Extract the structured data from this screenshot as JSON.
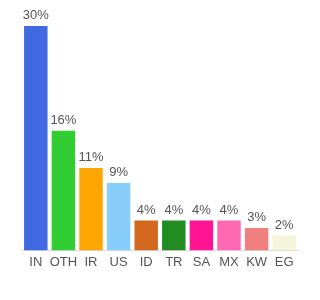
{
  "chart_data": {
    "type": "bar",
    "categories": [
      "IN",
      "OTH",
      "IR",
      "US",
      "ID",
      "TR",
      "SA",
      "MX",
      "KW",
      "EG"
    ],
    "values": [
      30,
      16,
      11,
      9,
      4,
      4,
      4,
      4,
      3,
      2
    ],
    "value_labels": [
      "30%",
      "16%",
      "11%",
      "9%",
      "4%",
      "4%",
      "4%",
      "4%",
      "3%",
      "2%"
    ],
    "colors": [
      "#4169e1",
      "#32cd32",
      "#ffa500",
      "#87cefa",
      "#d2691e",
      "#228b22",
      "#ff1493",
      "#ff69b4",
      "#f08080",
      "#f5f5dc"
    ],
    "ylim": [
      0,
      30
    ],
    "data_labels": true,
    "tick_labels": "x",
    "grid": false
  }
}
